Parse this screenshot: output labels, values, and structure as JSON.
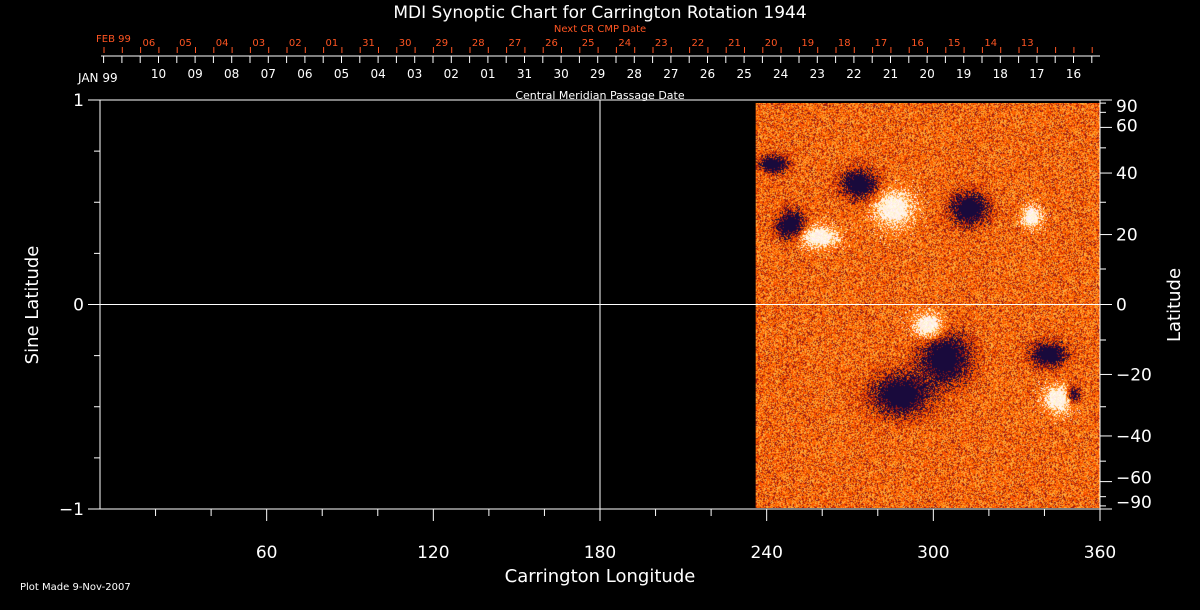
{
  "chart_data": {
    "type": "heatmap",
    "title": "MDI Synoptic Chart for Carrington Rotation 1944",
    "xlabel": "Carrington Longitude",
    "ylabel_left": "Sine Latitude",
    "ylabel_right": "Latitude",
    "xlim": [
      0,
      360
    ],
    "ylim": [
      -1,
      1
    ],
    "x_ticks": [
      60,
      120,
      180,
      240,
      300,
      360
    ],
    "y_left_ticks": [
      1,
      0,
      -1
    ],
    "y_right_ticks": [
      90,
      60,
      40,
      20,
      0,
      -20,
      -40,
      -60,
      -90
    ],
    "data_start_longitude": 235,
    "grid_lines": {
      "x": [
        180
      ],
      "y": [
        0
      ]
    },
    "cmp_axis": {
      "label": "Central Meridian Passage Date",
      "month_label": "JAN 99",
      "dates": [
        "10",
        "09",
        "08",
        "07",
        "06",
        "05",
        "04",
        "03",
        "02",
        "01",
        "31",
        "30",
        "29",
        "28",
        "27",
        "26",
        "25",
        "24",
        "23",
        "22",
        "21",
        "20",
        "19",
        "18",
        "17",
        "16"
      ]
    },
    "next_cmp_axis": {
      "label": "Next CR CMP Date",
      "month_label": "FEB 99",
      "dates": [
        "06",
        "05",
        "04",
        "03",
        "02",
        "01",
        "31",
        "30",
        "29",
        "28",
        "27",
        "26",
        "25",
        "24",
        "23",
        "22",
        "21",
        "20",
        "19",
        "18",
        "17",
        "16",
        "15",
        "14",
        "13"
      ]
    },
    "colors": {
      "next_axis": "#ff5522",
      "background": "#000000",
      "map_base": "#ff4a00",
      "positive": "#ffffff",
      "negative": "#1a0a40"
    }
  },
  "footer": {
    "plot_made": "Plot Made  9-Nov-2007"
  }
}
